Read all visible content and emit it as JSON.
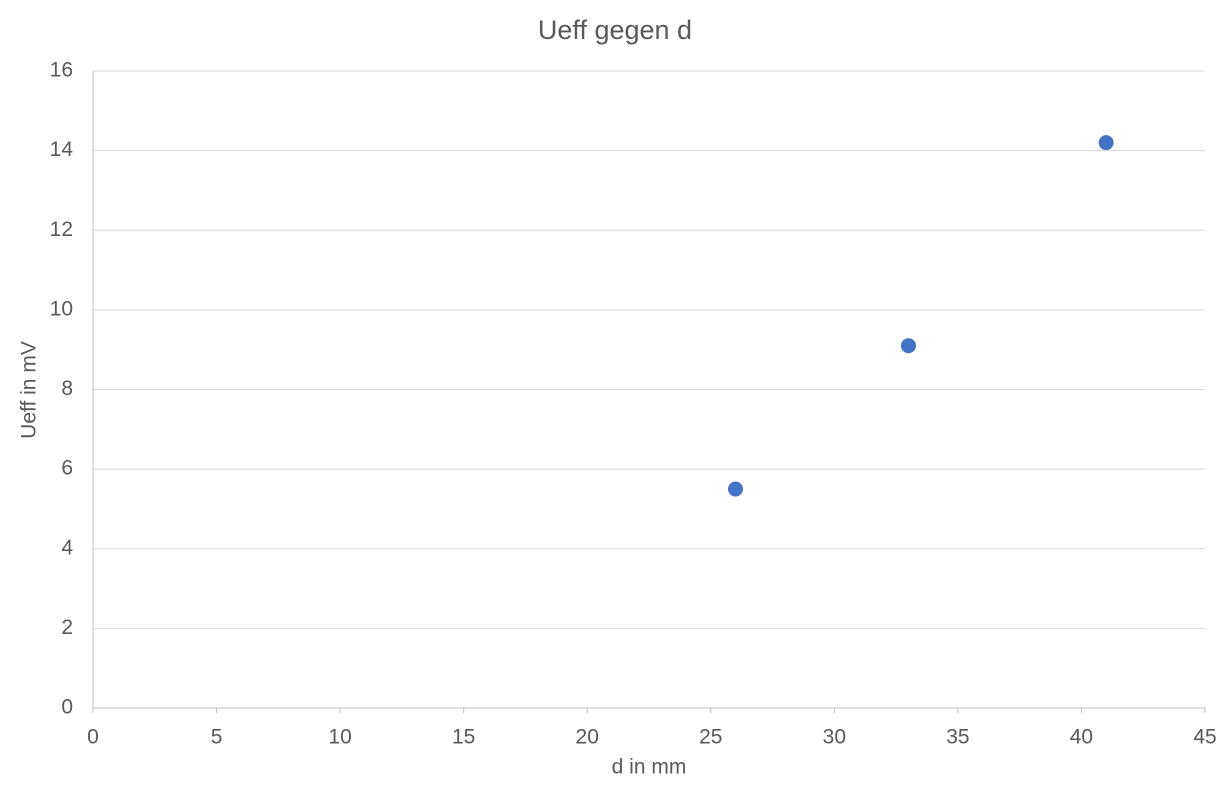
{
  "chart_data": {
    "type": "scatter",
    "title": "Ueff gegen d",
    "x_label": "d in mm",
    "y_label": "Ueff in mV",
    "series": [
      {
        "name": "Ueff",
        "color": "#4472c4",
        "x": [
          26,
          33,
          41
        ],
        "values": [
          5.5,
          9.1,
          14.2
        ]
      }
    ],
    "xlim": [
      0,
      45
    ],
    "xticks": [
      0,
      5,
      10,
      15,
      20,
      25,
      30,
      35,
      40,
      45
    ],
    "ylim": [
      0,
      16
    ],
    "yticks": [
      0,
      2,
      4,
      6,
      8,
      10,
      12,
      14,
      16
    ],
    "grid": true
  }
}
